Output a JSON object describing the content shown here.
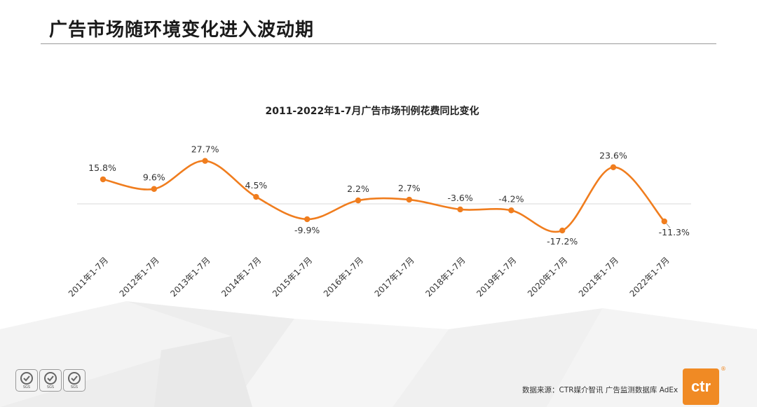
{
  "page": {
    "title": "广告市场随环境变化进入波动期"
  },
  "chart_data": {
    "type": "line",
    "title": "2011-2022年1-7月广告市场刊例花费同比变化",
    "categories": [
      "2011年1-7月",
      "2012年1-7月",
      "2013年1-7月",
      "2014年1-7月",
      "2015年1-7月",
      "2016年1-7月",
      "2017年1-7月",
      "2018年1-7月",
      "2019年1-7月",
      "2020年1-7月",
      "2021年1-7月",
      "2022年1-7月"
    ],
    "series": [
      {
        "values": [
          15.8,
          9.6,
          27.7,
          4.5,
          -9.9,
          2.2,
          2.7,
          -3.6,
          -4.2,
          -17.2,
          23.6,
          -11.3
        ],
        "labels": [
          "15.8%",
          "9.6%",
          "27.7%",
          "4.5%",
          "-9.9%",
          "2.2%",
          "2.7%",
          "-3.6%",
          "-4.2%",
          "-17.2%",
          "23.6%",
          "-11.3%"
        ]
      }
    ],
    "line_color": "#f07d1e",
    "baseline": 0,
    "grid": false,
    "legend": "none",
    "smooth": true
  },
  "source": {
    "text": "数据来源：CTR媒介智讯 广告监测数据库 AdEx"
  },
  "logo": {
    "text": "ctr",
    "color": "#f08a24",
    "mark": "®"
  },
  "badges": [
    {
      "label": "SGS",
      "icon": "check-badge-icon"
    },
    {
      "label": "SGS",
      "icon": "check-badge-icon"
    },
    {
      "label": "SGS",
      "icon": "check-badge-icon"
    }
  ]
}
